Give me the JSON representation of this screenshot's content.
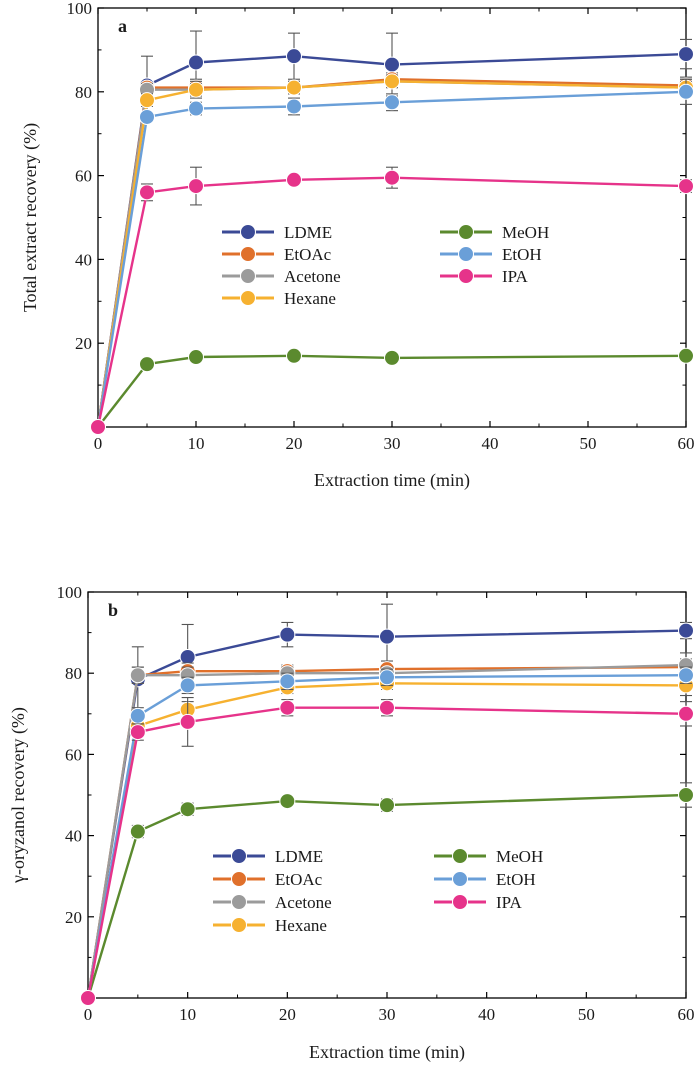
{
  "colors": {
    "LDME": "#3b4a96",
    "EtOAc": "#e0702b",
    "Acetone": "#9b9b9b",
    "Hexane": "#f6b130",
    "MeOH": "#5b8a2e",
    "EtOH": "#6a9fd8",
    "IPA": "#e6338a"
  },
  "chart_data": [
    {
      "type": "line",
      "panel": "a",
      "xlabel": "Extraction time (min)",
      "ylabel": "Total extract recovery (%)",
      "xlim": [
        0,
        60
      ],
      "ylim": [
        0,
        100
      ],
      "xticks": [
        0,
        10,
        20,
        30,
        40,
        50,
        60
      ],
      "yticks": [
        20,
        40,
        60,
        80,
        100
      ],
      "x": [
        0,
        5,
        10,
        20,
        30,
        60
      ],
      "legend_order": [
        "LDME",
        "EtOAc",
        "Acetone",
        "Hexane",
        "MeOH",
        "EtOH",
        "IPA"
      ],
      "series": [
        {
          "name": "LDME",
          "values": [
            0,
            81.5,
            87,
            88.5,
            86.5,
            89
          ],
          "errors": [
            0,
            7,
            7.5,
            5.5,
            7.5,
            3.5
          ]
        },
        {
          "name": "EtOAc",
          "values": [
            0,
            81,
            81,
            81,
            83,
            81.5
          ],
          "errors": [
            0,
            1,
            2,
            1.5,
            1.5,
            2
          ]
        },
        {
          "name": "Acetone",
          "values": [
            0,
            80.5,
            80.5,
            81,
            82.5,
            81
          ],
          "errors": [
            0,
            1.5,
            1.5,
            1,
            1.5,
            1.5
          ]
        },
        {
          "name": "Hexane",
          "values": [
            0,
            78,
            80.5,
            81,
            82.5,
            81
          ],
          "errors": [
            0,
            1.5,
            2,
            1.5,
            1.5,
            2
          ]
        },
        {
          "name": "MeOH",
          "values": [
            0,
            15,
            16.7,
            17,
            16.5,
            17
          ],
          "errors": [
            0,
            0.5,
            0.5,
            0.5,
            0.5,
            0.5
          ]
        },
        {
          "name": "EtOH",
          "values": [
            0,
            74,
            76,
            76.5,
            77.5,
            80
          ],
          "errors": [
            0,
            1,
            1.5,
            2,
            2,
            3
          ]
        },
        {
          "name": "IPA",
          "values": [
            0,
            56,
            57.5,
            59,
            59.5,
            57.5
          ],
          "errors": [
            0,
            2,
            4.5,
            1,
            2.5,
            1.5
          ]
        }
      ]
    },
    {
      "type": "line",
      "panel": "b",
      "xlabel": "Extraction time (min)",
      "ylabel": "γ-oryzanol recovery (%)",
      "xlim": [
        0,
        60
      ],
      "ylim": [
        0,
        100
      ],
      "xticks": [
        0,
        10,
        20,
        30,
        40,
        50,
        60
      ],
      "yticks": [
        20,
        40,
        60,
        80,
        100
      ],
      "x": [
        0,
        5,
        10,
        20,
        30,
        60
      ],
      "legend_order": [
        "LDME",
        "EtOAc",
        "Acetone",
        "Hexane",
        "MeOH",
        "EtOH",
        "IPA"
      ],
      "series": [
        {
          "name": "LDME",
          "values": [
            0,
            78.5,
            84,
            89.5,
            89,
            90.5
          ],
          "errors": [
            0,
            8,
            8,
            3,
            8,
            2
          ]
        },
        {
          "name": "EtOAc",
          "values": [
            0,
            79.5,
            80.5,
            80.5,
            81,
            81.5
          ],
          "errors": [
            0,
            2,
            2,
            1.5,
            2,
            2
          ]
        },
        {
          "name": "Acetone",
          "values": [
            0,
            79.5,
            79.5,
            80,
            80,
            82
          ],
          "errors": [
            0,
            2,
            2,
            1.5,
            1.5,
            3
          ]
        },
        {
          "name": "Hexane",
          "values": [
            0,
            67,
            71,
            76.5,
            77.5,
            77
          ],
          "errors": [
            0,
            2,
            2,
            1.5,
            1.5,
            2.5
          ]
        },
        {
          "name": "MeOH",
          "values": [
            0,
            41,
            46.5,
            48.5,
            47.5,
            50
          ],
          "errors": [
            0,
            1.5,
            1.5,
            1,
            1.5,
            3
          ]
        },
        {
          "name": "EtOH",
          "values": [
            0,
            69.5,
            77,
            78,
            79,
            79.5
          ],
          "errors": [
            0,
            2,
            2,
            2,
            2,
            2
          ]
        },
        {
          "name": "IPA",
          "values": [
            0,
            65.5,
            68,
            71.5,
            71.5,
            70
          ],
          "errors": [
            0,
            2,
            6,
            2,
            2,
            3
          ]
        }
      ]
    }
  ]
}
